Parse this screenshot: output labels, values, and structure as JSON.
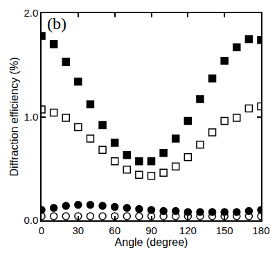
{
  "chart_data": {
    "type": "scatter",
    "x_label": "Angle (degree)",
    "y_label": "Diffraction efficiency (%)",
    "annotations": [
      {
        "text": "(b)"
      }
    ],
    "x": [
      0,
      10,
      20,
      30,
      40,
      50,
      60,
      70,
      80,
      90,
      100,
      110,
      120,
      130,
      140,
      150,
      160,
      170,
      180
    ],
    "series": [
      {
        "color": "#000000",
        "marker": "square",
        "values": [
          1.78,
          1.7,
          1.53,
          1.34,
          1.12,
          0.92,
          0.75,
          0.63,
          0.57,
          0.57,
          0.65,
          0.79,
          0.96,
          1.17,
          1.37,
          1.54,
          1.67,
          1.75,
          1.74
        ]
      },
      {
        "color": "#000000",
        "marker": "square-open",
        "values": [
          1.07,
          1.04,
          0.99,
          0.9,
          0.79,
          0.68,
          0.57,
          0.49,
          0.44,
          0.43,
          0.46,
          0.52,
          0.61,
          0.73,
          0.85,
          0.96,
          0.99,
          1.08,
          1.1
        ]
      },
      {
        "color": "#000000",
        "marker": "circle",
        "values": [
          0.1,
          0.12,
          0.14,
          0.15,
          0.15,
          0.14,
          0.13,
          0.12,
          0.11,
          0.1,
          0.09,
          0.09,
          0.08,
          0.08,
          0.08,
          0.08,
          0.08,
          0.09,
          0.1
        ]
      },
      {
        "color": "#000000",
        "marker": "circle-open",
        "values": [
          0.04,
          0.04,
          0.04,
          0.04,
          0.04,
          0.04,
          0.04,
          0.04,
          0.04,
          0.04,
          0.04,
          0.04,
          0.04,
          0.04,
          0.04,
          0.04,
          0.04,
          0.04,
          0.04
        ]
      }
    ],
    "xlim": [
      0,
      180
    ],
    "xticks": [
      0,
      30,
      60,
      90,
      120,
      150,
      180
    ],
    "ylim": [
      0,
      2.0
    ],
    "yticks": [
      {
        "value": 0,
        "label": "0.0"
      },
      {
        "value": 1.0,
        "label": "1.0"
      },
      {
        "value": 2.0,
        "label": "2.0"
      }
    ],
    "grid": false
  }
}
